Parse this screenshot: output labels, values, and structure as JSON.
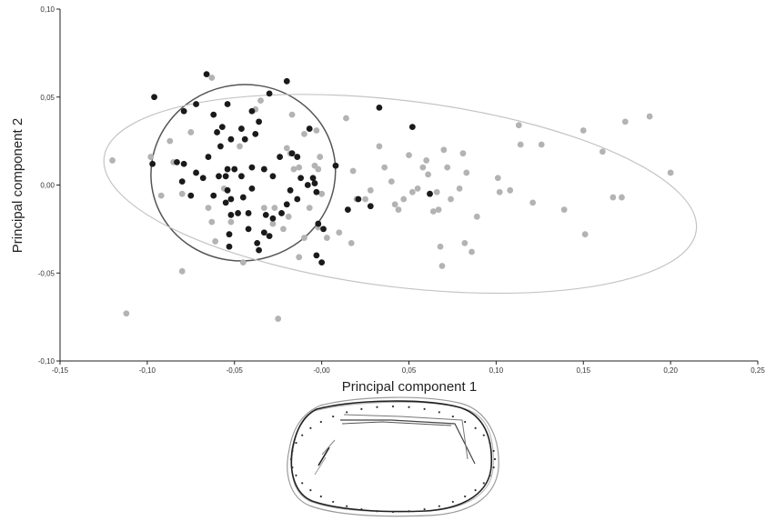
{
  "chart_data": {
    "type": "scatter",
    "title": "",
    "xlabel": "Principal component 1",
    "ylabel": "Principal component 2",
    "xlim": [
      -0.15,
      0.25
    ],
    "ylim": [
      -0.1,
      0.1
    ],
    "xticks": [
      -0.15,
      -0.1,
      -0.05,
      0.0,
      0.05,
      0.1,
      0.15,
      0.2,
      0.25
    ],
    "yticks": [
      -0.1,
      -0.05,
      0.0,
      0.05,
      0.1
    ],
    "x_tick_labels": [
      "-0,15",
      "-0,10",
      "-0,05",
      "-0,00",
      "0,05",
      "0,10",
      "0,15",
      "0,20",
      "0,25"
    ],
    "y_tick_labels": [
      "-0,10",
      "-0,05",
      "0,00",
      "0,05",
      "0,10"
    ],
    "grid": false,
    "legend": "none",
    "colors": {
      "black_group": "#1a1a1a",
      "grey_group": "#b3b3b3",
      "black_ellipse": "#555555",
      "grey_ellipse": "#c4c4c4"
    },
    "series": [
      {
        "color": "black",
        "points": [
          [
            -0.096,
            0.05
          ],
          [
            -0.066,
            0.063
          ],
          [
            -0.054,
            0.046
          ],
          [
            -0.02,
            0.059
          ],
          [
            -0.079,
            0.042
          ],
          [
            -0.072,
            0.046
          ],
          [
            -0.062,
            0.04
          ],
          [
            -0.06,
            0.03
          ],
          [
            -0.057,
            0.033
          ],
          [
            -0.04,
            0.042
          ],
          [
            -0.03,
            0.052
          ],
          [
            -0.036,
            0.036
          ],
          [
            -0.046,
            0.032
          ],
          [
            -0.044,
            0.026
          ],
          [
            -0.038,
            0.029
          ],
          [
            -0.052,
            0.026
          ],
          [
            -0.058,
            0.022
          ],
          [
            -0.065,
            0.016
          ],
          [
            -0.083,
            0.013
          ],
          [
            -0.097,
            0.012
          ],
          [
            -0.079,
            0.012
          ],
          [
            -0.072,
            0.007
          ],
          [
            -0.08,
            0.002
          ],
          [
            -0.075,
            -0.006
          ],
          [
            -0.068,
            0.004
          ],
          [
            -0.059,
            0.005
          ],
          [
            -0.054,
            0.009
          ],
          [
            -0.05,
            0.009
          ],
          [
            -0.046,
            0.005
          ],
          [
            -0.04,
            0.01
          ],
          [
            -0.033,
            0.009
          ],
          [
            -0.024,
            0.016
          ],
          [
            -0.014,
            0.016
          ],
          [
            -0.028,
            0.005
          ],
          [
            -0.018,
            -0.003
          ],
          [
            -0.012,
            0.004
          ],
          [
            -0.005,
            0.004
          ],
          [
            -0.004,
            0.001
          ],
          [
            -0.003,
            -0.004
          ],
          [
            -0.008,
            0.0
          ],
          [
            -0.017,
            0.018
          ],
          [
            -0.007,
            0.032
          ],
          [
            0.008,
            0.011
          ],
          [
            0.033,
            0.044
          ],
          [
            0.052,
            0.033
          ],
          [
            0.062,
            -0.005
          ],
          [
            0.021,
            -0.008
          ],
          [
            0.028,
            -0.012
          ],
          [
            0.015,
            -0.014
          ],
          [
            -0.062,
            -0.006
          ],
          [
            -0.055,
            -0.01
          ],
          [
            -0.052,
            -0.017
          ],
          [
            -0.048,
            -0.016
          ],
          [
            -0.042,
            -0.016
          ],
          [
            -0.04,
            -0.002
          ],
          [
            -0.045,
            -0.007
          ],
          [
            -0.052,
            -0.008
          ],
          [
            -0.054,
            -0.003
          ],
          [
            -0.032,
            -0.017
          ],
          [
            -0.028,
            -0.019
          ],
          [
            -0.023,
            -0.016
          ],
          [
            -0.02,
            -0.011
          ],
          [
            -0.014,
            -0.008
          ],
          [
            -0.042,
            -0.025
          ],
          [
            -0.033,
            -0.027
          ],
          [
            -0.03,
            -0.029
          ],
          [
            -0.037,
            -0.033
          ],
          [
            -0.053,
            -0.028
          ],
          [
            -0.053,
            -0.035
          ],
          [
            -0.036,
            -0.037
          ],
          [
            -0.002,
            -0.022
          ],
          [
            0.001,
            -0.025
          ],
          [
            -0.003,
            -0.04
          ],
          [
            0.0,
            -0.044
          ],
          [
            -0.055,
            0.005
          ]
        ]
      },
      {
        "color": "grey",
        "points": [
          [
            -0.063,
            0.061
          ],
          [
            -0.12,
            0.014
          ],
          [
            -0.098,
            0.016
          ],
          [
            -0.087,
            0.025
          ],
          [
            -0.075,
            0.03
          ],
          [
            -0.085,
            0.013
          ],
          [
            -0.08,
            -0.005
          ],
          [
            -0.092,
            -0.006
          ],
          [
            -0.065,
            -0.013
          ],
          [
            -0.063,
            -0.021
          ],
          [
            -0.056,
            -0.002
          ],
          [
            -0.047,
            0.022
          ],
          [
            -0.038,
            0.043
          ],
          [
            -0.02,
            0.021
          ],
          [
            -0.035,
            0.048
          ],
          [
            -0.01,
            0.029
          ],
          [
            -0.003,
            0.031
          ],
          [
            -0.017,
            0.04
          ],
          [
            -0.018,
            0.018
          ],
          [
            -0.016,
            0.009
          ],
          [
            -0.013,
            0.01
          ],
          [
            -0.004,
            0.011
          ],
          [
            -0.002,
            0.009
          ],
          [
            0.0,
            -0.005
          ],
          [
            -0.007,
            -0.013
          ],
          [
            -0.019,
            -0.018
          ],
          [
            -0.027,
            -0.013
          ],
          [
            -0.028,
            -0.022
          ],
          [
            -0.033,
            -0.013
          ],
          [
            -0.022,
            -0.025
          ],
          [
            -0.01,
            -0.03
          ],
          [
            -0.002,
            -0.024
          ],
          [
            0.003,
            -0.03
          ],
          [
            0.01,
            -0.027
          ],
          [
            0.017,
            -0.033
          ],
          [
            0.02,
            -0.008
          ],
          [
            0.025,
            -0.008
          ],
          [
            0.028,
            -0.003
          ],
          [
            0.033,
            0.022
          ],
          [
            0.036,
            0.01
          ],
          [
            0.04,
            0.002
          ],
          [
            0.042,
            -0.011
          ],
          [
            0.044,
            -0.014
          ],
          [
            0.047,
            -0.008
          ],
          [
            0.05,
            0.017
          ],
          [
            0.052,
            -0.004
          ],
          [
            0.055,
            -0.002
          ],
          [
            0.058,
            0.01
          ],
          [
            0.06,
            0.014
          ],
          [
            0.061,
            0.006
          ],
          [
            0.064,
            -0.015
          ],
          [
            0.066,
            -0.004
          ],
          [
            0.067,
            -0.014
          ],
          [
            0.068,
            -0.035
          ],
          [
            0.069,
            -0.046
          ],
          [
            0.07,
            0.02
          ],
          [
            0.072,
            0.01
          ],
          [
            0.074,
            -0.008
          ],
          [
            0.079,
            -0.002
          ],
          [
            0.081,
            0.018
          ],
          [
            0.082,
            -0.033
          ],
          [
            0.083,
            0.007
          ],
          [
            0.086,
            -0.038
          ],
          [
            0.089,
            -0.018
          ],
          [
            0.101,
            0.004
          ],
          [
            0.102,
            -0.004
          ],
          [
            0.108,
            -0.003
          ],
          [
            0.113,
            0.034
          ],
          [
            0.114,
            0.023
          ],
          [
            0.121,
            -0.01
          ],
          [
            0.126,
            0.023
          ],
          [
            0.139,
            -0.014
          ],
          [
            0.15,
            0.031
          ],
          [
            0.151,
            -0.028
          ],
          [
            0.161,
            0.019
          ],
          [
            0.167,
            -0.007
          ],
          [
            0.172,
            -0.007
          ],
          [
            0.174,
            0.036
          ],
          [
            0.188,
            0.039
          ],
          [
            0.2,
            0.007
          ],
          [
            -0.08,
            -0.049
          ],
          [
            -0.061,
            -0.032
          ],
          [
            -0.052,
            -0.021
          ],
          [
            -0.045,
            -0.044
          ],
          [
            -0.025,
            -0.076
          ],
          [
            -0.112,
            -0.073
          ],
          [
            -0.013,
            -0.041
          ],
          [
            -0.001,
            0.016
          ],
          [
            0.018,
            0.008
          ],
          [
            0.014,
            0.038
          ]
        ]
      }
    ],
    "ellipses": [
      {
        "group": "black",
        "center": [
          -0.045,
          0.007
        ],
        "radii": [
          0.053,
          0.05
        ],
        "rotation_deg": -12
      },
      {
        "group": "grey",
        "center": [
          0.045,
          -0.005
        ],
        "radii": [
          0.171,
          0.053
        ],
        "rotation_deg": 7
      }
    ],
    "inset_shape_figure": "landmark outline overlay below the plot"
  }
}
